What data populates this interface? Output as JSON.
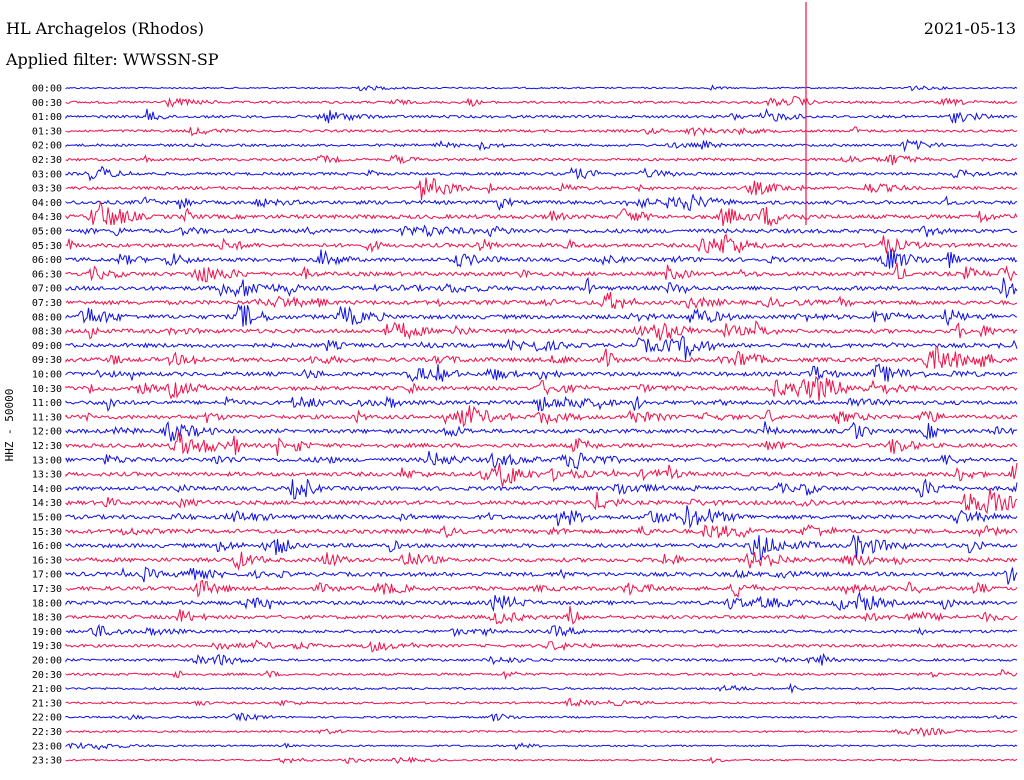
{
  "header": {
    "station": "HL Archagelos (Rhodos)",
    "filter": "Applied filter: WWSSN-SP",
    "date": "2021-05-13"
  },
  "chart_data": {
    "type": "line",
    "title": "HL Archagelos (Rhodos)",
    "subtitle": "Applied filter: WWSSN-SP",
    "date": "2021-05-13",
    "ylabel": "HHZ - 50000",
    "colors": [
      "#1010e6",
      "#f0104a"
    ],
    "rows": [
      "00:00",
      "00:30",
      "01:00",
      "01:30",
      "02:00",
      "02:30",
      "03:00",
      "03:30",
      "04:00",
      "04:30",
      "05:00",
      "05:30",
      "06:00",
      "06:30",
      "07:00",
      "07:30",
      "08:00",
      "08:30",
      "09:00",
      "09:30",
      "10:00",
      "10:30",
      "11:00",
      "11:30",
      "12:00",
      "12:30",
      "13:00",
      "13:30",
      "14:00",
      "14:30",
      "15:00",
      "15:30",
      "16:00",
      "16:30",
      "17:00",
      "17:30",
      "18:00",
      "18:30",
      "19:00",
      "19:30",
      "20:00",
      "20:30",
      "21:00",
      "21:30",
      "22:00",
      "22:30",
      "23:00",
      "23:30"
    ],
    "activity": [
      0.1,
      0.35,
      0.45,
      0.4,
      0.4,
      0.45,
      0.5,
      0.55,
      0.75,
      0.85,
      0.85,
      0.8,
      0.8,
      0.85,
      0.9,
      0.9,
      0.9,
      0.9,
      0.9,
      0.9,
      0.85,
      0.85,
      0.85,
      0.85,
      0.85,
      0.85,
      0.85,
      0.85,
      0.85,
      0.85,
      0.9,
      0.9,
      0.85,
      0.85,
      0.85,
      0.8,
      0.8,
      0.7,
      0.55,
      0.5,
      0.4,
      0.35,
      0.3,
      0.25,
      0.2,
      0.2,
      0.15,
      0.12
    ]
  }
}
